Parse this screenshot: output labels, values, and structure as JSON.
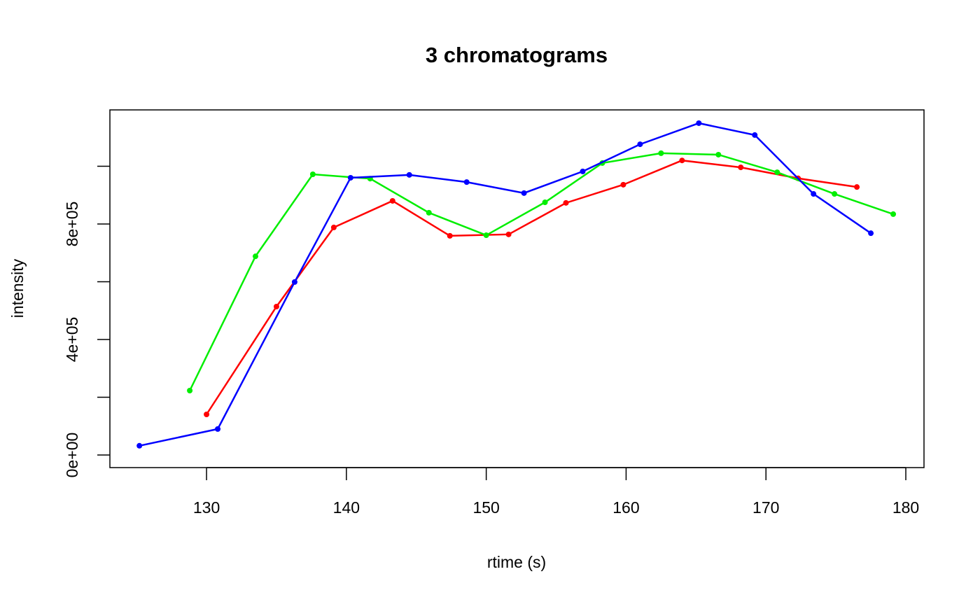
{
  "chart_data": {
    "type": "line",
    "title": "3 chromatograms",
    "x_label": "rtime (s)",
    "y_label": "intensity",
    "xlim": [
      123.09,
      181.3
    ],
    "xticks": [
      130,
      140,
      150,
      160,
      170,
      180
    ],
    "ylim": [
      -43600,
      1195000
    ],
    "yticks": [
      {
        "value": 0,
        "label": "0e+00"
      },
      {
        "value": 400000,
        "label": "4e+05"
      },
      {
        "value": 800000,
        "label": "8e+05"
      }
    ],
    "yminor_ticks": [
      200000,
      600000,
      1000000
    ],
    "grid": false,
    "series": [
      {
        "color": "#ff0000",
        "x": [
          130.0,
          135.0,
          139.1,
          143.3,
          147.4,
          151.6,
          155.7,
          159.8,
          164.0,
          168.2,
          172.3,
          176.5
        ],
        "values": [
          140600,
          514000,
          788000,
          880000,
          759000,
          764000,
          873000,
          936000,
          1020000,
          996000,
          958000,
          928000
        ]
      },
      {
        "color": "#00ee00",
        "x": [
          128.8,
          133.5,
          137.6,
          141.7,
          145.9,
          150.0,
          154.2,
          158.3,
          162.5,
          166.6,
          170.8,
          174.9,
          179.1
        ],
        "values": [
          223000,
          688000,
          972000,
          957000,
          839000,
          761000,
          875000,
          1011000,
          1045000,
          1040000,
          979000,
          904000,
          834000
        ]
      },
      {
        "color": "#0000ff",
        "x": [
          125.2,
          130.8,
          136.3,
          140.3,
          144.5,
          148.6,
          152.7,
          156.9,
          161.0,
          165.2,
          169.2,
          173.4,
          177.5
        ],
        "values": [
          32000,
          90000,
          599000,
          960000,
          970000,
          945000,
          907000,
          982000,
          1076000,
          1149000,
          1108000,
          904000,
          768000
        ]
      }
    ]
  }
}
